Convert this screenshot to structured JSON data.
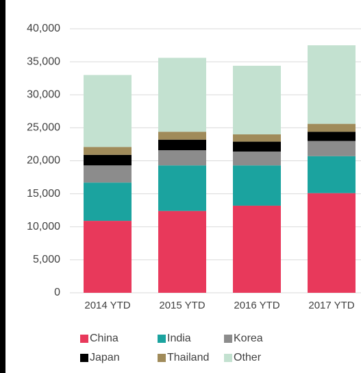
{
  "chart_data": {
    "type": "stacked_bar",
    "categories": [
      "2014 YTD",
      "2015 YTD",
      "2016 YTD",
      "2017 YTD"
    ],
    "series": [
      {
        "name": "China",
        "color": "#e8395b",
        "values": [
          10900,
          12400,
          13200,
          15100
        ]
      },
      {
        "name": "India",
        "color": "#1ba39f",
        "values": [
          5800,
          6900,
          6100,
          5600
        ]
      },
      {
        "name": "Korea",
        "color": "#8c8c8c",
        "values": [
          2600,
          2300,
          2100,
          2300
        ]
      },
      {
        "name": "Japan",
        "color": "#000000",
        "values": [
          1600,
          1600,
          1500,
          1400
        ]
      },
      {
        "name": "Thailand",
        "color": "#a08b5a",
        "values": [
          1200,
          1200,
          1100,
          1200
        ]
      },
      {
        "name": "Other",
        "color": "#c3e1d0",
        "values": [
          10900,
          11200,
          10400,
          11900
        ]
      }
    ],
    "ylim": [
      0,
      40000
    ],
    "yticks": [
      0,
      {
        "value": 5000,
        "label": "5,000"
      },
      {
        "value": 10000,
        "label": "10,000"
      },
      {
        "value": 15000,
        "label": "15,000"
      },
      {
        "value": 20000,
        "label": "20,000"
      },
      {
        "value": 25000,
        "label": "25,000"
      },
      {
        "value": 30000,
        "label": "30,000"
      },
      {
        "value": 35000,
        "label": "35,000"
      },
      {
        "value": 40000,
        "label": "40,000"
      }
    ],
    "grid": true,
    "legend": "bottom"
  }
}
